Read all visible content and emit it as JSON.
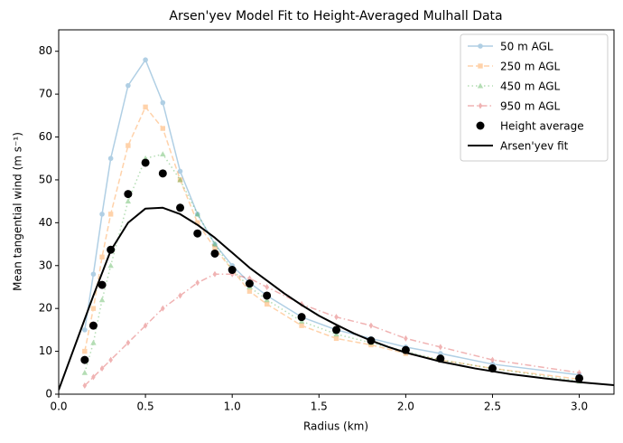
{
  "chart_data": {
    "type": "line",
    "title": "Arsen'yev Model Fit to Height-Averaged Mulhall Data",
    "x_label": "Radius (km)",
    "y_label": "Mean tangential wind (m s⁻¹)",
    "xlim": [
      0,
      3.2
    ],
    "ylim": [
      0,
      85
    ],
    "xticks": [
      {
        "value": 0,
        "label": "0.0"
      },
      0.5,
      {
        "value": 1,
        "label": "1.0"
      },
      1.5,
      {
        "value": 2,
        "label": "2.0"
      },
      2.5,
      {
        "value": 3,
        "label": "3.0"
      }
    ],
    "yticks": [
      0,
      10,
      20,
      30,
      40,
      50,
      60,
      70,
      80
    ],
    "grid": false,
    "legend": "upper right",
    "series": [
      {
        "name": "50 m AGL",
        "color": "#1f77b4",
        "alpha": 0.35,
        "linestyle": "solid",
        "marker": "circle",
        "x": [
          0.15,
          0.2,
          0.25,
          0.3,
          0.4,
          0.5,
          0.6,
          0.7,
          0.8,
          0.9,
          1.0,
          1.1,
          1.2,
          1.4,
          1.6,
          1.8,
          2.0,
          2.2,
          2.5,
          3.0
        ],
        "values": [
          15,
          28,
          42,
          55,
          72,
          78,
          68,
          52,
          42,
          35,
          30,
          26,
          23,
          18,
          15,
          13,
          11,
          9.5,
          7,
          4.5
        ]
      },
      {
        "name": "250 m AGL",
        "color": "#ff7f0e",
        "alpha": 0.35,
        "linestyle": "dashed",
        "marker": "square",
        "x": [
          0.15,
          0.2,
          0.25,
          0.3,
          0.4,
          0.5,
          0.6,
          0.7,
          0.8,
          0.9,
          1.0,
          1.1,
          1.2,
          1.4,
          1.6,
          1.8,
          2.0,
          2.2,
          2.5,
          3.0
        ],
        "values": [
          10,
          20,
          32,
          42,
          58,
          67,
          62,
          50,
          40,
          34,
          29,
          24,
          21,
          16,
          13,
          11.5,
          9.5,
          8,
          6,
          3.5
        ]
      },
      {
        "name": "450 m AGL",
        "color": "#2ca02c",
        "alpha": 0.35,
        "linestyle": "dotted",
        "marker": "triangle",
        "x": [
          0.15,
          0.2,
          0.25,
          0.3,
          0.4,
          0.5,
          0.6,
          0.7,
          0.8,
          0.9,
          1.0,
          1.1,
          1.2,
          1.4,
          1.6,
          1.8,
          2.0,
          2.2,
          2.5,
          3.0
        ],
        "values": [
          5,
          12,
          22,
          30,
          45,
          55,
          56,
          50,
          42,
          35,
          29,
          25,
          22,
          17,
          14,
          12,
          10,
          8,
          6,
          3
        ]
      },
      {
        "name": "950 m AGL",
        "color": "#d62728",
        "alpha": 0.35,
        "linestyle": "dashdot",
        "marker": "diamond",
        "x": [
          0.15,
          0.2,
          0.25,
          0.3,
          0.4,
          0.5,
          0.6,
          0.7,
          0.8,
          0.9,
          1.0,
          1.1,
          1.2,
          1.4,
          1.6,
          1.8,
          2.0,
          2.2,
          2.5,
          3.0
        ],
        "values": [
          2,
          4,
          6,
          8,
          12,
          16,
          20,
          23,
          26,
          28,
          28,
          27,
          25,
          21,
          18,
          16,
          13,
          11,
          8,
          5
        ]
      },
      {
        "name": "Height average",
        "color": "#000000",
        "alpha": 1,
        "linestyle": "none",
        "marker": "circle",
        "x": [
          0.15,
          0.2,
          0.25,
          0.3,
          0.4,
          0.5,
          0.6,
          0.7,
          0.8,
          0.9,
          1.0,
          1.1,
          1.2,
          1.4,
          1.6,
          1.8,
          2.0,
          2.2,
          2.5,
          3.0
        ],
        "values": [
          8,
          16,
          25.5,
          33.7,
          46.7,
          54,
          51.5,
          43.5,
          37.5,
          32.8,
          29,
          25.8,
          23,
          18,
          15,
          12.5,
          10.3,
          8.3,
          6,
          3.7
        ]
      },
      {
        "name": "Arsen'yev fit",
        "color": "#000000",
        "alpha": 1,
        "linestyle": "solid",
        "marker": "none",
        "linewidth": 2,
        "x": [
          0,
          0.1,
          0.2,
          0.3,
          0.4,
          0.5,
          0.6,
          0.7,
          0.8,
          0.9,
          1.0,
          1.1,
          1.2,
          1.3,
          1.4,
          1.5,
          1.6,
          1.7,
          1.8,
          1.9,
          2.0,
          2.2,
          2.4,
          2.6,
          2.8,
          3.0,
          3.2
        ],
        "values": [
          1,
          12,
          23,
          33.5,
          40,
          43.3,
          43.5,
          42,
          39.5,
          36.5,
          33,
          29.5,
          26.5,
          23.5,
          20.8,
          18.3,
          16.2,
          14.2,
          12.5,
          11,
          9.7,
          7.6,
          6,
          4.7,
          3.7,
          2.8,
          2.1
        ]
      }
    ]
  }
}
